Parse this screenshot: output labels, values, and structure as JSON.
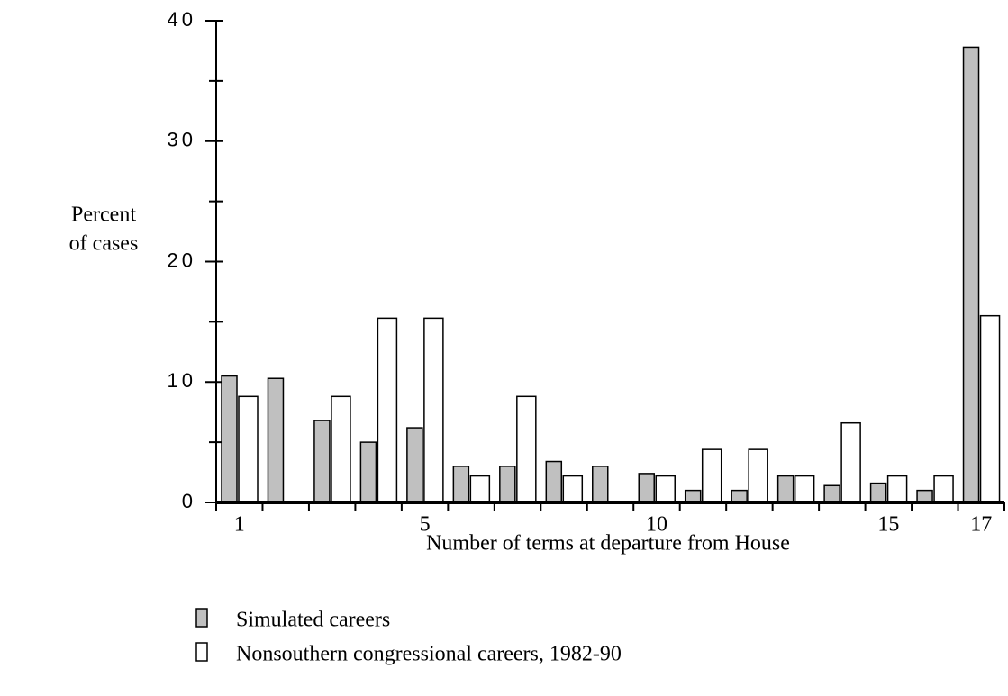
{
  "chart_data": {
    "type": "bar",
    "ylabel_lines": [
      "Percent",
      "of cases"
    ],
    "xlabel": "Number of terms at departure from House",
    "categories": [
      "1",
      null,
      null,
      null,
      "5",
      null,
      null,
      null,
      null,
      "10",
      null,
      null,
      null,
      null,
      "15",
      null,
      "17"
    ],
    "series": [
      {
        "name": "Simulated careers",
        "color": "#c0c0c0",
        "values": [
          10.5,
          10.3,
          6.8,
          5.0,
          6.2,
          3.0,
          3.0,
          3.4,
          3.0,
          2.4,
          1.0,
          1.0,
          2.2,
          1.4,
          1.6,
          1.0,
          37.8
        ]
      },
      {
        "name": "Nonsouthern congressional careers, 1982-90",
        "color": "#ffffff",
        "values": [
          8.8,
          0,
          8.8,
          15.3,
          15.3,
          2.2,
          8.8,
          2.2,
          0,
          2.2,
          4.4,
          4.4,
          2.2,
          6.6,
          2.2,
          2.2,
          15.5
        ]
      }
    ],
    "ylim": [
      0,
      40
    ],
    "yticks": [
      0,
      10,
      20,
      30,
      40
    ],
    "yminor_ticks": [
      5,
      15,
      25,
      35
    ],
    "grid": false
  }
}
